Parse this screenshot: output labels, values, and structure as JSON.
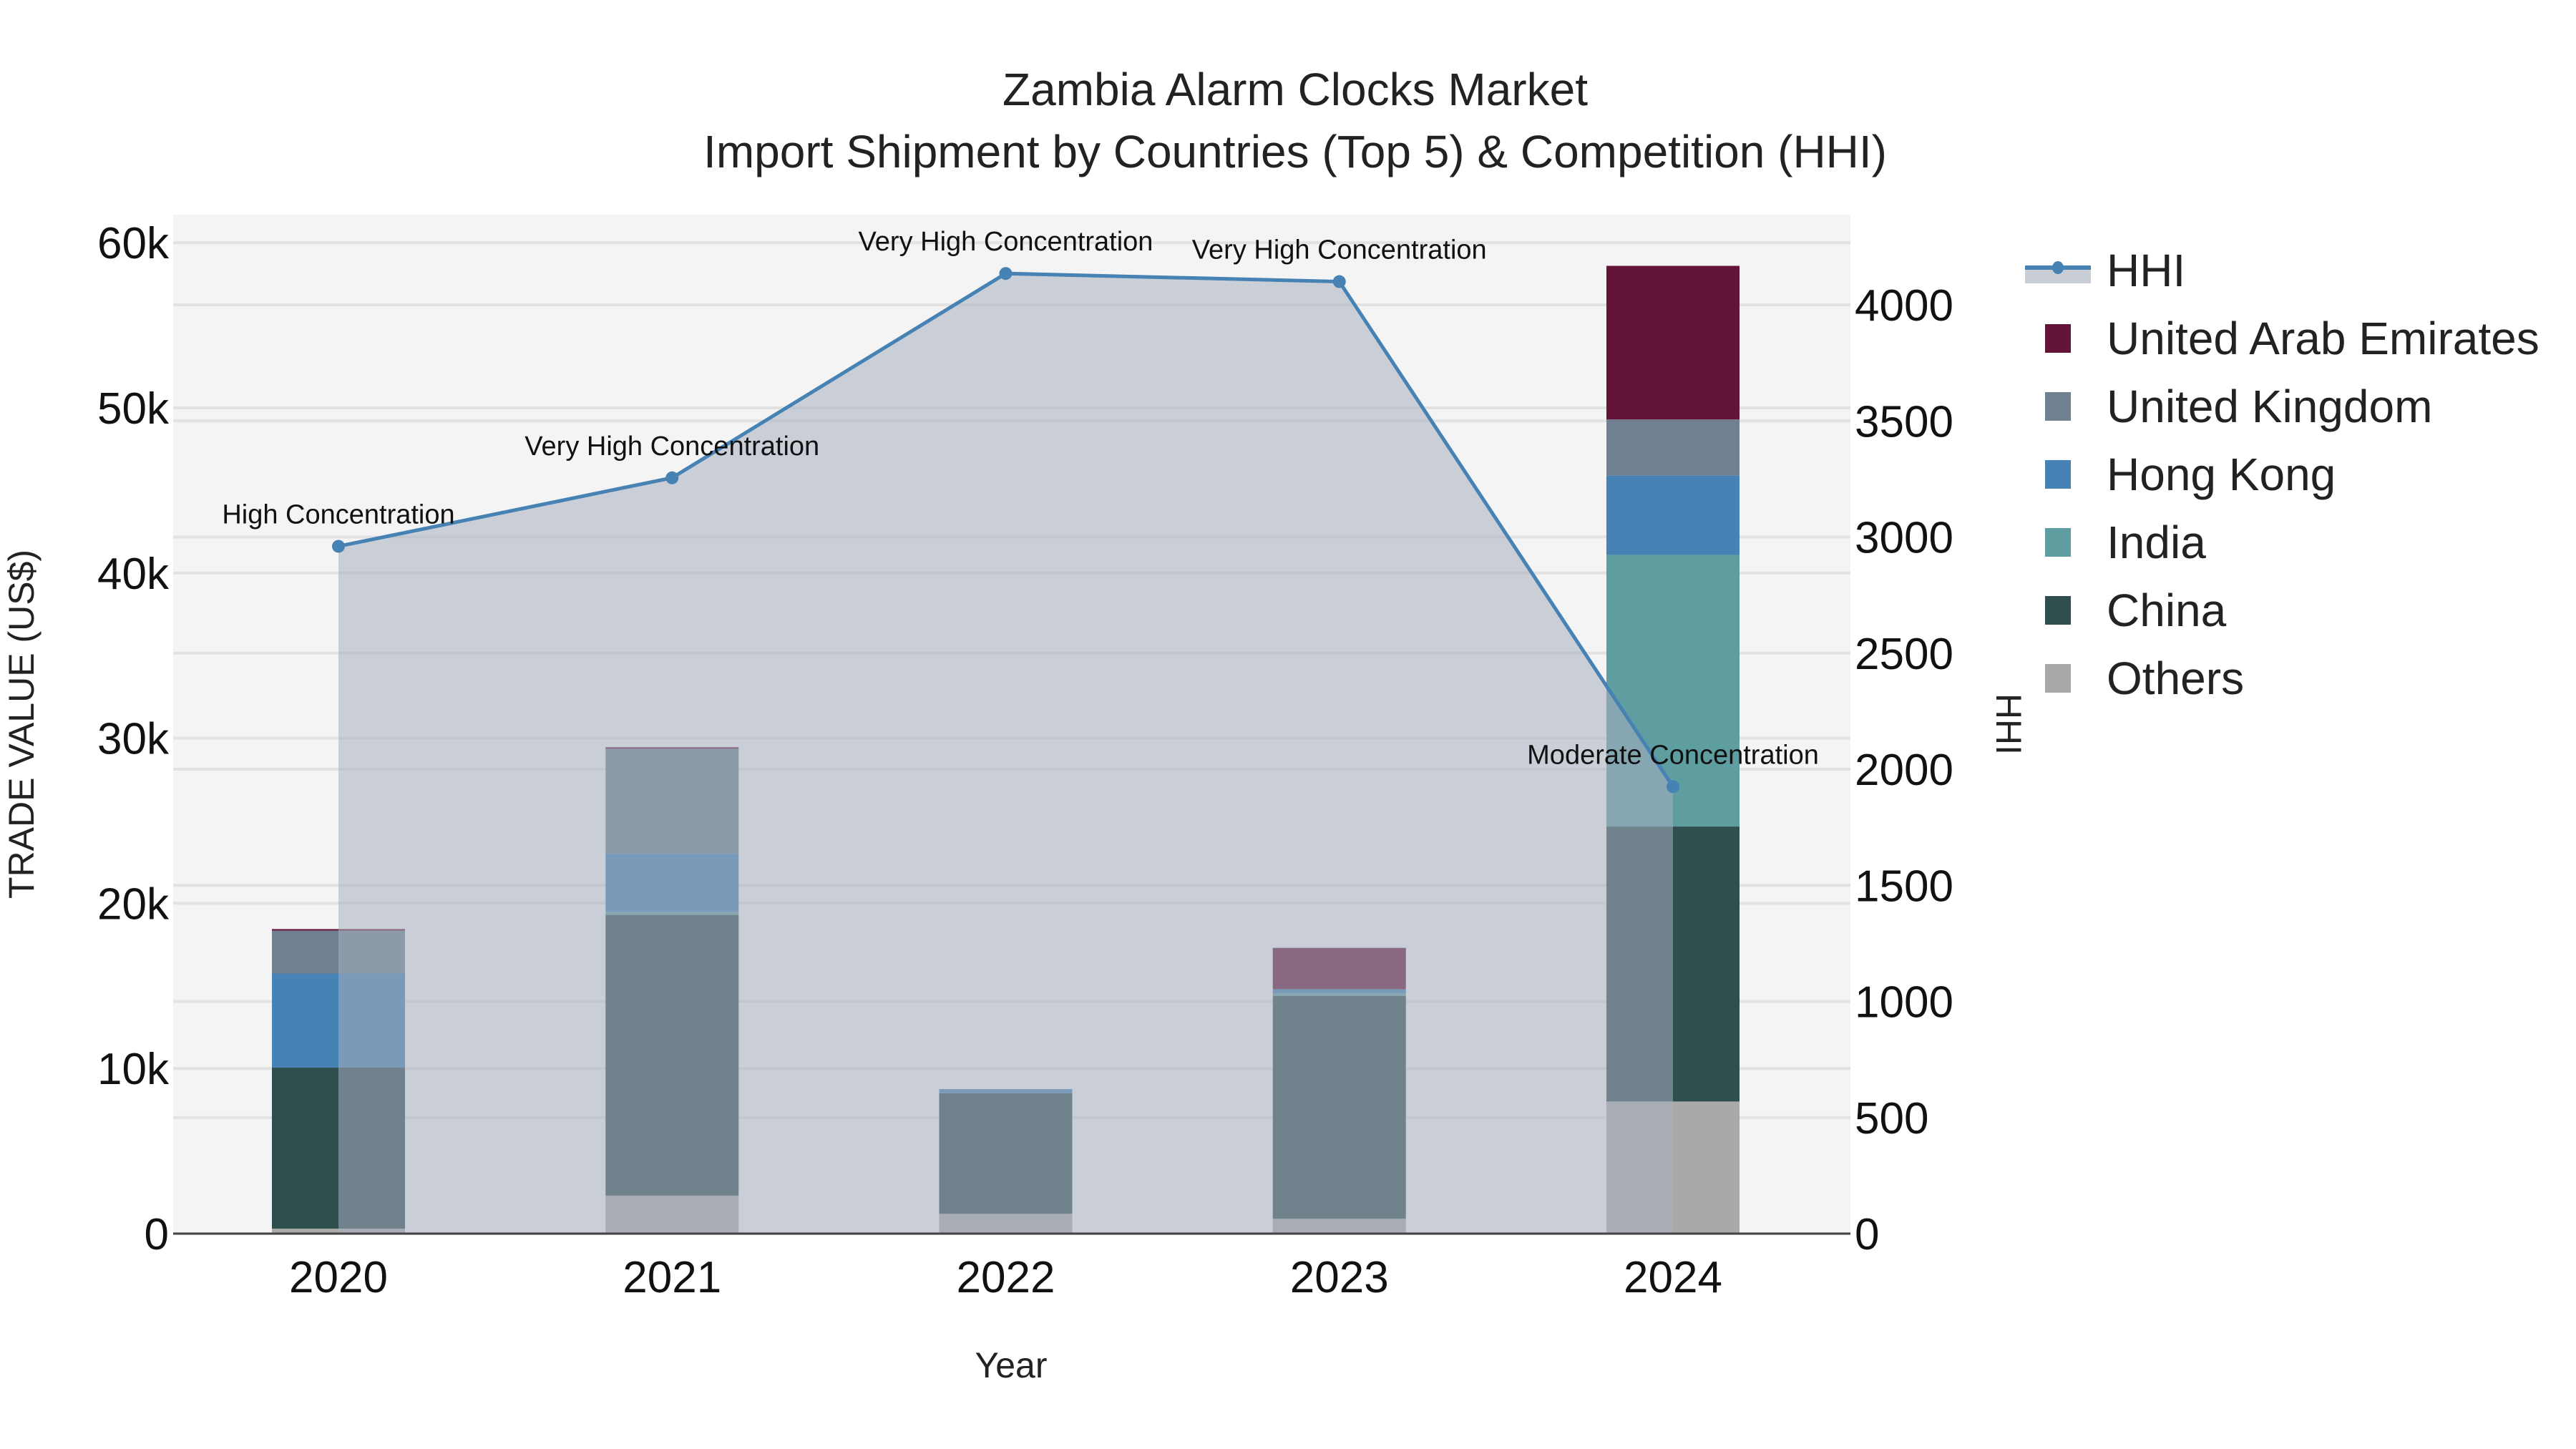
{
  "title": {
    "line1": "Zambia Alarm Clocks Market",
    "line2": "Import Shipment by Countries (Top 5) & Competition (HHI)"
  },
  "axes": {
    "x_label": "Year",
    "y_left_label": "TRADE VALUE (US$)",
    "y_right_label": "HHI",
    "y_left_ticks": [
      "0",
      "10k",
      "20k",
      "30k",
      "40k",
      "50k",
      "60k"
    ],
    "y_right_ticks": [
      "0",
      "500",
      "1000",
      "1500",
      "2000",
      "2500",
      "3000",
      "3500",
      "4000"
    ]
  },
  "legend": [
    {
      "name": "HHI",
      "type": "line",
      "color": "#4682B4"
    },
    {
      "name": "United Arab Emirates",
      "type": "bar",
      "color": "#641537"
    },
    {
      "name": "United Kingdom",
      "type": "bar",
      "color": "#708090"
    },
    {
      "name": "Hong Kong",
      "type": "bar",
      "color": "#4682B4"
    },
    {
      "name": "India",
      "type": "bar",
      "color": "#5F9EA0"
    },
    {
      "name": "China",
      "type": "bar",
      "color": "#2F4F4F"
    },
    {
      "name": "Others",
      "type": "bar",
      "color": "#A9A9A9"
    }
  ],
  "chart_data": {
    "type": "bar",
    "subtype": "stacked bar + line (secondary axis) with area fill",
    "title": "Zambia Alarm Clocks Market — Import Shipment by Countries (Top 5) & Competition (HHI)",
    "xlabel": "Year",
    "ylabel": "TRADE VALUE (US$)",
    "y2label": "HHI",
    "categories": [
      "2020",
      "2021",
      "2022",
      "2023",
      "2024"
    ],
    "ylim": [
      0,
      62000
    ],
    "y2lim": [
      0,
      4380
    ],
    "grid": true,
    "legend_position": "right",
    "series": [
      {
        "name": "Others",
        "type": "bar",
        "axis": "left",
        "color": "#A9A9A9",
        "values": [
          300,
          2300,
          1200,
          900,
          8000
        ]
      },
      {
        "name": "China",
        "type": "bar",
        "axis": "left",
        "color": "#2F4F4F",
        "values": [
          9750,
          17000,
          7300,
          13500,
          16650
        ]
      },
      {
        "name": "India",
        "type": "bar",
        "axis": "left",
        "color": "#5F9EA0",
        "values": [
          0,
          200,
          0,
          150,
          16450
        ]
      },
      {
        "name": "Hong Kong",
        "type": "bar",
        "axis": "left",
        "color": "#4682B4",
        "values": [
          5700,
          3500,
          250,
          250,
          4800
        ]
      },
      {
        "name": "United Kingdom",
        "type": "bar",
        "axis": "left",
        "color": "#708090",
        "values": [
          2600,
          6400,
          0,
          0,
          3400
        ]
      },
      {
        "name": "United Arab Emirates",
        "type": "bar",
        "axis": "left",
        "color": "#641537",
        "values": [
          90,
          50,
          0,
          2500,
          9300
        ]
      },
      {
        "name": "HHI",
        "type": "line",
        "axis": "right",
        "color": "#4682B4",
        "values": [
          2960,
          3255,
          4135,
          4100,
          1925
        ]
      }
    ],
    "annotations": [
      {
        "x": "2020",
        "text": "High Concentration"
      },
      {
        "x": "2021",
        "text": "Very High Concentration"
      },
      {
        "x": "2022",
        "text": "Very High Concentration"
      },
      {
        "x": "2023",
        "text": "Very High Concentration"
      },
      {
        "x": "2024",
        "text": "Moderate Concentration"
      }
    ]
  }
}
